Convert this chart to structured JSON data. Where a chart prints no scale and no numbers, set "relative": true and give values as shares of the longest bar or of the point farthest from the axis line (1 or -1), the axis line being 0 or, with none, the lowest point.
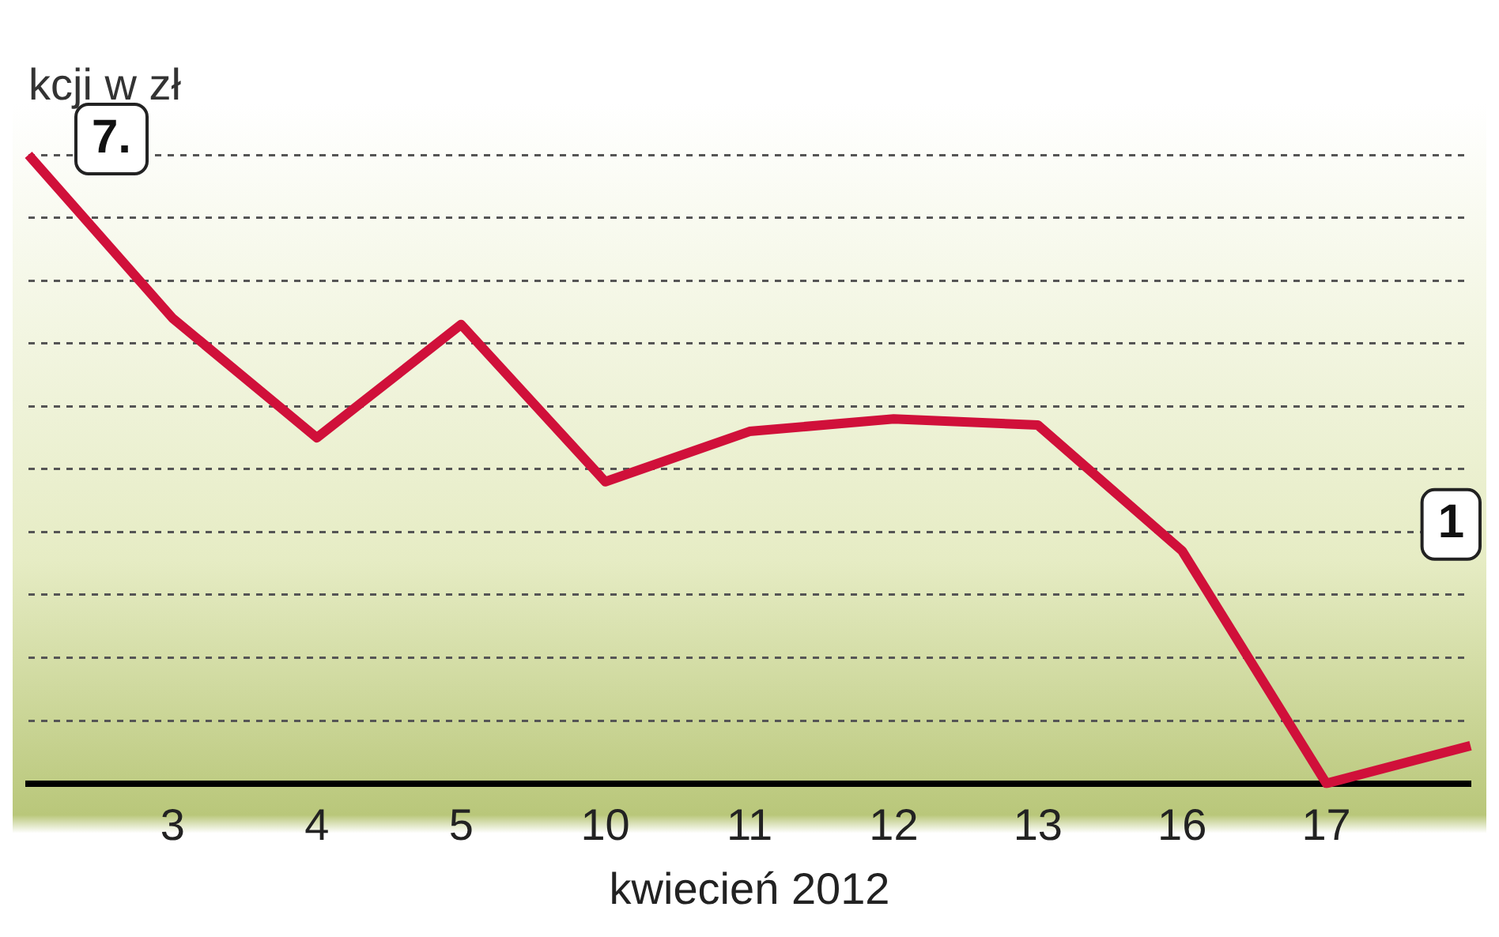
{
  "chart_data": {
    "type": "line",
    "relative": true,
    "ylabel": "kcji w zł",
    "xlabel": "kwiecień 2012",
    "categories": [
      null,
      "3",
      "4",
      "5",
      "10",
      "11",
      "12",
      "13",
      "16",
      "17",
      null
    ],
    "series": [
      {
        "color": "#d0103a",
        "values": [
          1,
          0.74,
          0.55,
          0.73,
          0.48,
          0.56,
          0.58,
          0.57,
          0.37,
          0,
          0.06
        ]
      }
    ],
    "annotations": [
      "7.",
      "1"
    ],
    "grid": "y",
    "legend": false,
    "marker": "none",
    "line_style": "solid"
  }
}
